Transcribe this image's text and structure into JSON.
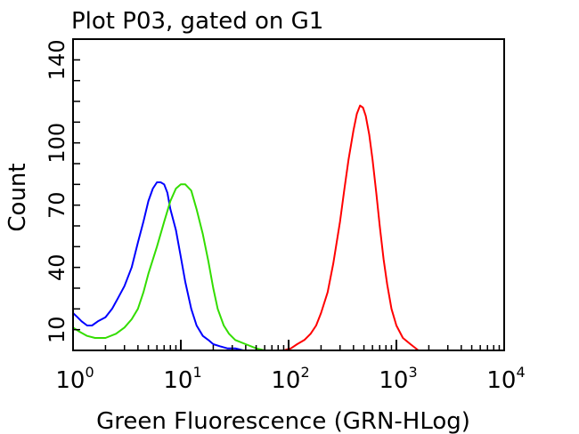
{
  "chart_data": {
    "type": "line",
    "title": "Plot P03, gated on G1",
    "xlabel": "Green Fluorescence (GRN-HLog)",
    "ylabel": "Count",
    "x_scale": "log",
    "xlim": [
      1,
      10000
    ],
    "ylim": [
      0,
      150
    ],
    "x_ticks": [
      {
        "value": 1,
        "base": "10",
        "exp": "0"
      },
      {
        "value": 10,
        "base": "10",
        "exp": "1"
      },
      {
        "value": 100,
        "base": "10",
        "exp": "2"
      },
      {
        "value": 1000,
        "base": "10",
        "exp": "3"
      },
      {
        "value": 10000,
        "base": "10",
        "exp": "4"
      }
    ],
    "y_ticks": [
      10,
      40,
      70,
      100,
      140
    ],
    "grid": false,
    "legend": "none",
    "series": [
      {
        "color": "#0000ff",
        "x": [
          1.0,
          1.1,
          1.2,
          1.35,
          1.5,
          1.7,
          2.0,
          2.3,
          2.6,
          3.0,
          3.5,
          4.0,
          4.5,
          5.0,
          5.5,
          6.0,
          6.5,
          7.0,
          7.5,
          8.0,
          9.0,
          10,
          11,
          12.5,
          14,
          16,
          18,
          20,
          23,
          27,
          32,
          38
        ],
        "y": [
          18,
          16,
          14,
          12,
          12,
          14,
          16,
          20,
          25,
          31,
          40,
          52,
          62,
          72,
          78,
          81,
          81,
          80,
          76,
          68,
          58,
          45,
          33,
          20,
          12,
          7,
          5,
          3,
          2,
          1,
          1,
          0
        ]
      },
      {
        "color": "#33dd00",
        "x": [
          1.0,
          1.15,
          1.35,
          1.6,
          2.0,
          2.5,
          3.0,
          3.5,
          4.0,
          4.5,
          5.0,
          6.0,
          7.0,
          8.0,
          9.0,
          10,
          11,
          12.5,
          14,
          16,
          18,
          20,
          22,
          25,
          28,
          32,
          40,
          50,
          60
        ],
        "y": [
          11,
          9,
          7,
          6,
          6,
          8,
          11,
          15,
          20,
          28,
          37,
          50,
          62,
          72,
          78,
          80,
          80,
          77,
          68,
          56,
          43,
          30,
          20,
          12,
          8,
          5,
          3,
          1,
          0
        ]
      },
      {
        "color": "#ff0000",
        "x": [
          90,
          105,
          120,
          140,
          160,
          180,
          200,
          230,
          260,
          300,
          330,
          360,
          400,
          430,
          460,
          490,
          520,
          560,
          600,
          650,
          700,
          760,
          820,
          900,
          1000,
          1150,
          1350,
          1600
        ],
        "y": [
          0,
          1,
          3,
          5,
          8,
          12,
          18,
          28,
          42,
          62,
          78,
          92,
          106,
          114,
          118,
          117,
          113,
          104,
          92,
          76,
          60,
          44,
          32,
          20,
          12,
          6,
          3,
          0
        ]
      }
    ]
  }
}
